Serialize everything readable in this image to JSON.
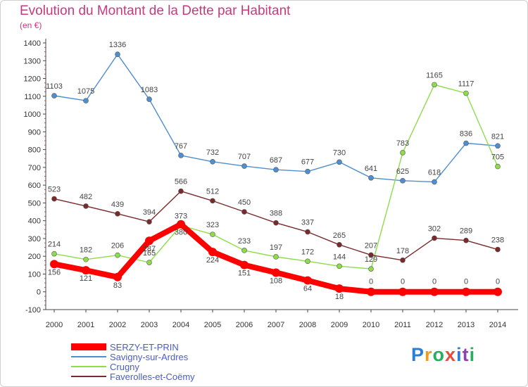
{
  "header": {
    "title": "Evolution du Montant de la Dette par Habitant",
    "subtitle": "(en €)"
  },
  "logo": {
    "text": "Proxiti",
    "letters": [
      "P",
      "r",
      "o",
      "x",
      "i",
      "t",
      "i"
    ],
    "colors": [
      "#2a7fd4",
      "#f39c12",
      "#27ae60",
      "#e74c3c",
      "#2a7fd4",
      "#8e44ad",
      "#27ae60"
    ]
  },
  "chart_data": {
    "type": "line",
    "title": "Evolution du Montant de la Dette par Habitant",
    "subtitle": "(en €)",
    "x": [
      "2000",
      "2001",
      "2002",
      "2003",
      "2004",
      "2005",
      "2006",
      "2007",
      "2008",
      "2009",
      "2010",
      "2011",
      "2012",
      "2013",
      "2014"
    ],
    "ylim": [
      -100,
      1400
    ],
    "yticks": [
      -100,
      0,
      100,
      200,
      300,
      400,
      500,
      600,
      700,
      800,
      900,
      1000,
      1100,
      1200,
      1300,
      1400
    ],
    "grid": false,
    "legend_position": "bottom-left",
    "series": [
      {
        "name": "SERZY-ET-PRIN",
        "color": "#ff0000",
        "values": [
          156,
          121,
          83,
          287,
          380,
          224,
          151,
          108,
          64,
          18,
          0,
          0,
          0,
          0,
          0
        ]
      },
      {
        "name": "Savigny-sur-Ardres",
        "color": "#4f8fcf",
        "values": [
          1103,
          1075,
          1336,
          1083,
          767,
          732,
          707,
          687,
          677,
          730,
          641,
          625,
          618,
          836,
          821
        ]
      },
      {
        "name": "Crugny",
        "color": "#8edc4a",
        "values": [
          214,
          182,
          206,
          165,
          373,
          323,
          233,
          197,
          172,
          144,
          129,
          783,
          1165,
          1117,
          705
        ]
      },
      {
        "name": "Faverolles-et-Coëmy",
        "color": "#7a2a2a",
        "values": [
          523,
          482,
          439,
          394,
          566,
          512,
          450,
          388,
          337,
          265,
          207,
          178,
          302,
          289,
          238
        ]
      }
    ]
  }
}
